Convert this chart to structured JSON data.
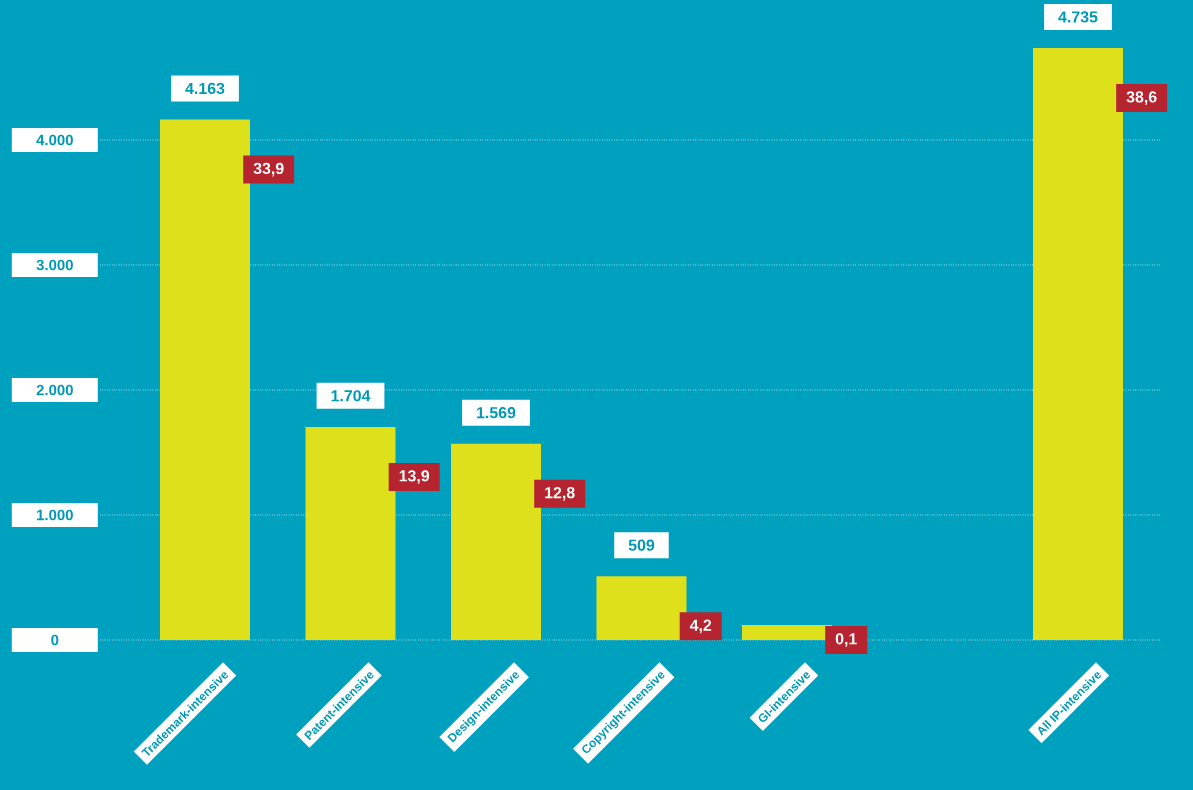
{
  "chart_data": {
    "type": "bar",
    "categories": [
      "Trademark-intensive",
      "Patent-intensive",
      "Design-intensive",
      "Copyright-intensive",
      "GI-intensive",
      null,
      "All IP-intensive"
    ],
    "values": [
      4163,
      1704,
      1569,
      509,
      120,
      null,
      4735
    ],
    "value_labels": [
      "4.163",
      "1.704",
      "1.569",
      "509",
      null,
      null,
      "4.735"
    ],
    "color": "#dde01b",
    "ylim": [
      0,
      5100
    ],
    "yticks": [
      {
        "value": 0,
        "label": "0"
      },
      {
        "value": 1000,
        "label": "1.000"
      },
      {
        "value": 2000,
        "label": "2.000"
      },
      {
        "value": 3000,
        "label": "3.000"
      },
      {
        "value": 4000,
        "label": "4.000"
      }
    ],
    "grid": "y",
    "annotations": [
      "33,9",
      "13,9",
      "12,8",
      "4,2",
      "0,1",
      "38,6"
    ]
  }
}
